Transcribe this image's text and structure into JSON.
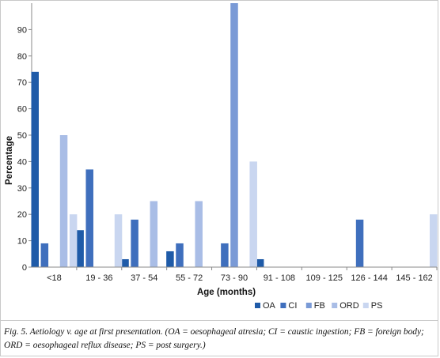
{
  "chart_data": {
    "type": "bar",
    "xlabel": "Age (months)",
    "ylabel": "Percentage",
    "ylim": [
      0,
      100
    ],
    "yticks": [
      0,
      10,
      20,
      30,
      40,
      50,
      60,
      70,
      80,
      90
    ],
    "categories": [
      "<18",
      "19 - 36",
      "37 - 54",
      "55 - 72",
      "73 - 90",
      "91 - 108",
      "109 - 125",
      "126 - 144",
      "145 - 162"
    ],
    "series": [
      {
        "name": "OA",
        "color": "#1f5ba8",
        "values": [
          74,
          14,
          3,
          6,
          0,
          3,
          0,
          0,
          0
        ]
      },
      {
        "name": "CI",
        "color": "#3f6fbd",
        "values": [
          9,
          37,
          18,
          9,
          9,
          0,
          0,
          18,
          0
        ]
      },
      {
        "name": "FB",
        "color": "#7a9ad6",
        "values": [
          0,
          0,
          0,
          0,
          100,
          0,
          0,
          0,
          0
        ]
      },
      {
        "name": "ORD",
        "color": "#a9bde6",
        "values": [
          50,
          0,
          25,
          25,
          0,
          0,
          0,
          0,
          0
        ]
      },
      {
        "name": "PS",
        "color": "#c9d6f0",
        "values": [
          20,
          20,
          0,
          0,
          40,
          0,
          0,
          0,
          20
        ]
      }
    ],
    "legend_position": "bottom-right",
    "grid": false
  },
  "caption": "Fig. 5. Aetiology v. age at first presentation. (OA = oesophageal atresia; CI = caustic ingestion; FB = foreign body; ORD = oesophageal reflux disease; PS = post surgery.)"
}
